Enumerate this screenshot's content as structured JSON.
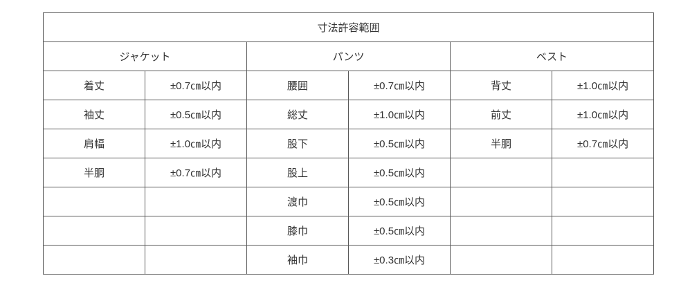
{
  "table": {
    "title": "寸法許容範囲",
    "groups": [
      {
        "name": "ジャケット",
        "rows": [
          [
            "着丈",
            "±0.7㎝以内"
          ],
          [
            "袖丈",
            "±0.5㎝以内"
          ],
          [
            "肩幅",
            "±1.0㎝以内"
          ],
          [
            "半胴",
            "±0.7㎝以内"
          ],
          [
            "",
            ""
          ],
          [
            "",
            ""
          ],
          [
            "",
            ""
          ]
        ]
      },
      {
        "name": "パンツ",
        "rows": [
          [
            "腰囲",
            "±0.7㎝以内"
          ],
          [
            "総丈",
            "±1.0㎝以内"
          ],
          [
            "股下",
            "±0.5㎝以内"
          ],
          [
            "股上",
            "±0.5㎝以内"
          ],
          [
            "渡巾",
            "±0.5㎝以内"
          ],
          [
            "膝巾",
            "±0.5㎝以内"
          ],
          [
            "袖巾",
            "±0.3㎝以内"
          ]
        ]
      },
      {
        "name": "ベスト",
        "rows": [
          [
            "背丈",
            "±1.0㎝以内"
          ],
          [
            "前丈",
            "±1.0㎝以内"
          ],
          [
            "半胴",
            "±0.7㎝以内"
          ],
          [
            "",
            ""
          ],
          [
            "",
            ""
          ],
          [
            "",
            ""
          ],
          [
            "",
            ""
          ]
        ]
      }
    ]
  }
}
